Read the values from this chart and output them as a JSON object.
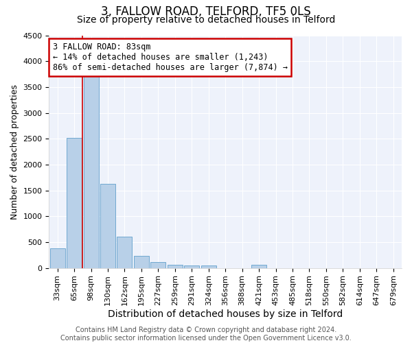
{
  "title": "3, FALLOW ROAD, TELFORD, TF5 0LS",
  "subtitle": "Size of property relative to detached houses in Telford",
  "xlabel": "Distribution of detached houses by size in Telford",
  "ylabel": "Number of detached properties",
  "categories": [
    "33sqm",
    "65sqm",
    "98sqm",
    "130sqm",
    "162sqm",
    "195sqm",
    "227sqm",
    "259sqm",
    "291sqm",
    "324sqm",
    "356sqm",
    "388sqm",
    "421sqm",
    "453sqm",
    "485sqm",
    "518sqm",
    "550sqm",
    "582sqm",
    "614sqm",
    "647sqm",
    "679sqm"
  ],
  "values": [
    380,
    2510,
    3720,
    1630,
    600,
    240,
    110,
    60,
    45,
    45,
    0,
    0,
    60,
    0,
    0,
    0,
    0,
    0,
    0,
    0,
    0
  ],
  "bar_color": "#b8d0e8",
  "bar_edge_color": "#6fa8d0",
  "annotation_text": "3 FALLOW ROAD: 83sqm\n← 14% of detached houses are smaller (1,243)\n86% of semi-detached houses are larger (7,874) →",
  "red_line_x": 1.5,
  "annotation_box_color": "#ffffff",
  "annotation_box_edge": "#cc0000",
  "vline_color": "#cc0000",
  "background_color": "#ffffff",
  "plot_background": "#eef2fb",
  "grid_color": "#ffffff",
  "footer_text": "Contains HM Land Registry data © Crown copyright and database right 2024.\nContains public sector information licensed under the Open Government Licence v3.0.",
  "ylim": [
    0,
    4500
  ],
  "title_fontsize": 12,
  "subtitle_fontsize": 10,
  "xlabel_fontsize": 10,
  "ylabel_fontsize": 9,
  "tick_fontsize": 8,
  "annotation_fontsize": 8.5,
  "footer_fontsize": 7
}
